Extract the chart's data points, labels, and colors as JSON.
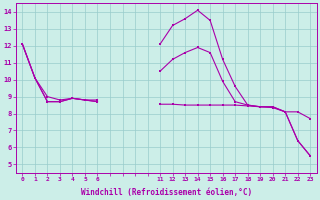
{
  "xlabel": "Windchill (Refroidissement éolien,°C)",
  "bg_color": "#cceee8",
  "grid_color": "#99cccc",
  "line_color": "#aa00aa",
  "xlabels": [
    "0",
    "1",
    "2",
    "3",
    "4",
    "5",
    "6",
    "",
    "",
    "",
    "",
    "11",
    "12",
    "13",
    "14",
    "15",
    "16",
    "17",
    "18",
    "19",
    "20",
    "21",
    "22",
    "23"
  ],
  "ylim": [
    4.5,
    14.5
  ],
  "yticks": [
    5,
    6,
    7,
    8,
    9,
    10,
    11,
    12,
    13,
    14
  ],
  "line1_y": [
    12.1,
    10.1,
    9.0,
    8.8,
    8.9,
    8.8,
    8.8,
    null,
    null,
    null,
    null,
    12.1,
    13.2,
    13.6,
    14.1,
    13.5,
    11.2,
    9.6,
    8.5,
    8.4,
    8.4,
    8.1,
    8.1,
    7.7
  ],
  "line2_y": [
    12.1,
    10.1,
    8.7,
    8.7,
    8.9,
    8.8,
    8.7,
    null,
    null,
    null,
    null,
    10.5,
    11.2,
    11.6,
    11.9,
    11.6,
    9.9,
    8.7,
    8.5,
    8.4,
    8.4,
    8.1,
    6.4,
    5.5
  ],
  "line3_y": [
    12.1,
    10.1,
    8.7,
    8.7,
    8.9,
    8.8,
    8.7,
    null,
    null,
    null,
    null,
    8.55,
    8.55,
    8.5,
    8.5,
    8.5,
    8.5,
    8.5,
    8.45,
    8.4,
    8.35,
    8.1,
    6.4,
    5.5
  ]
}
